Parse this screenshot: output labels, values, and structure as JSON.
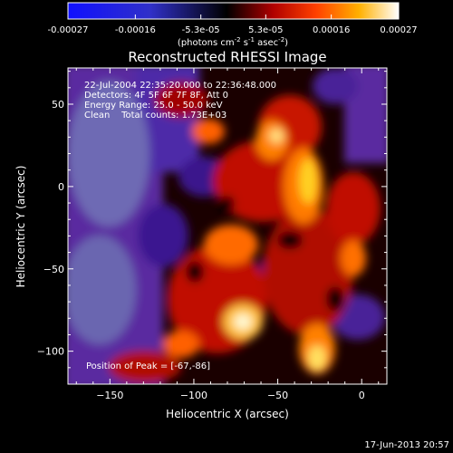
{
  "colorbar": {
    "ticks": [
      {
        "value": -0.00027,
        "label": "-0.00027"
      },
      {
        "value": -0.00016,
        "label": "-0.00016"
      },
      {
        "value": -5.3e-05,
        "label": "-5.3e-05"
      },
      {
        "value": 5.3e-05,
        "label": "5.3e-05"
      },
      {
        "value": 0.00016,
        "label": "0.00016"
      },
      {
        "value": 0.00027,
        "label": "0.00027"
      }
    ],
    "range": [
      -0.00027,
      0.00027
    ],
    "unit_prefix": "(photons cm",
    "unit_sup1": "-2",
    "unit_mid1": " s",
    "unit_sup2": "-1",
    "unit_mid2": " asec",
    "unit_sup3": "-2",
    "unit_suffix": ")",
    "colors": [
      "#1010ff",
      "#000000",
      "#ff3000",
      "#ffffff"
    ]
  },
  "chart_data": {
    "type": "heatmap",
    "title": "Reconstructed RHESSI Image",
    "xlabel": "Heliocentric X (arcsec)",
    "ylabel": "Heliocentric Y (arcsec)",
    "xlim": [
      -175,
      15
    ],
    "ylim": [
      -120,
      72
    ],
    "xticks": [
      {
        "value": -150,
        "label": "−150"
      },
      {
        "value": -100,
        "label": "−100"
      },
      {
        "value": -50,
        "label": "−50"
      },
      {
        "value": 0,
        "label": "0"
      }
    ],
    "yticks": [
      {
        "value": -100,
        "label": "−100"
      },
      {
        "value": -50,
        "label": "−50"
      },
      {
        "value": 0,
        "label": "0"
      },
      {
        "value": 50,
        "label": "50"
      }
    ],
    "peak": [
      -67,
      -86
    ],
    "annotations": {
      "time": "22-Jul-2004 22:35:20.000 to 22:36:48.000",
      "detectors": "Detectors: 4F 5F 6F 7F 8F, Att 0",
      "energy": "Energy Range: 25.0 - 50.0 keV",
      "clean": "Clean    Total counts: 1.73E+03",
      "peak_label": "Position of Peak = [-67,-86]"
    }
  },
  "footer": {
    "timestamp": "17-Jun-2013 20:57"
  }
}
